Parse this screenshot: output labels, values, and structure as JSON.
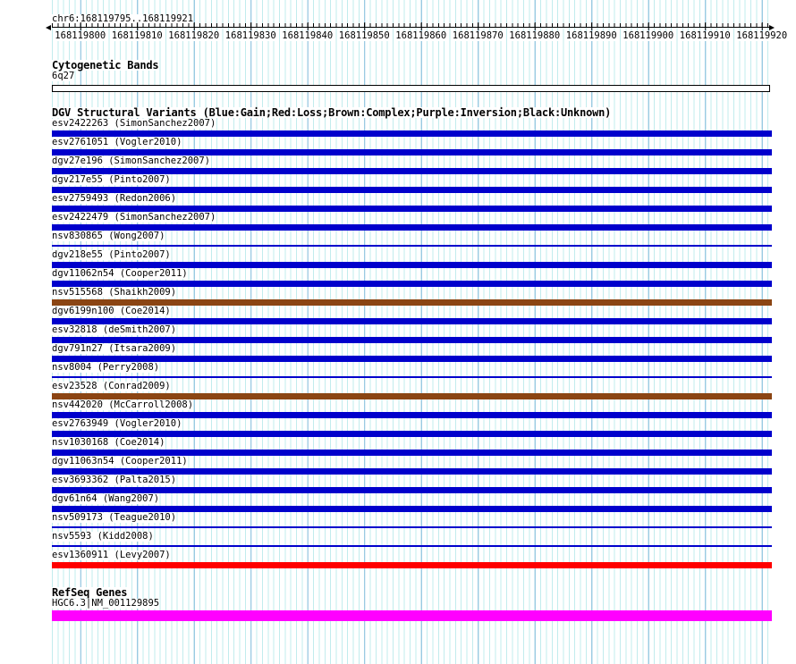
{
  "region": {
    "title": "chr6:168119795..168119921"
  },
  "ruler": {
    "tick_labels": [
      "168119800",
      "168119810",
      "168119820",
      "168119830",
      "168119840",
      "168119850",
      "168119860",
      "168119870",
      "168119880",
      "168119890",
      "168119900",
      "168119910",
      "168119920"
    ]
  },
  "sections": {
    "cytogenetic": {
      "header": "Cytogenetic Bands",
      "band_label": "6q27"
    },
    "dgv": {
      "header": "DGV Structural Variants (Blue:Gain;Red:Loss;Brown:Complex;Purple:Inversion;Black:Unknown)",
      "legend": {
        "gain": "#0000CC",
        "loss": "#FF0000",
        "complex": "#8B4513",
        "inversion": "#800080",
        "unknown": "#000000"
      },
      "variants": [
        {
          "label": "esv2422263 (SimonSanchez2007)",
          "color": "#0000CC",
          "shape": "box"
        },
        {
          "label": "esv2761051 (Vogler2010)",
          "color": "#0000CC",
          "shape": "box"
        },
        {
          "label": "dgv27e196 (SimonSanchez2007)",
          "color": "#0000CC",
          "shape": "box"
        },
        {
          "label": "dgv217e55 (Pinto2007)",
          "color": "#0000CC",
          "shape": "box"
        },
        {
          "label": "esv2759493 (Redon2006)",
          "color": "#0000CC",
          "shape": "box"
        },
        {
          "label": "esv2422479 (SimonSanchez2007)",
          "color": "#0000CC",
          "shape": "box"
        },
        {
          "label": "nsv830865 (Wong2007)",
          "color": "#0000CC",
          "shape": "line"
        },
        {
          "label": "dgv218e55 (Pinto2007)",
          "color": "#0000CC",
          "shape": "box"
        },
        {
          "label": "dgv11062n54 (Cooper2011)",
          "color": "#0000CC",
          "shape": "box"
        },
        {
          "label": "nsv515568 (Shaikh2009)",
          "color": "#8B4513",
          "shape": "box"
        },
        {
          "label": "dgv6199n100 (Coe2014)",
          "color": "#0000CC",
          "shape": "box"
        },
        {
          "label": "esv32818 (deSmith2007)",
          "color": "#0000CC",
          "shape": "box"
        },
        {
          "label": "dgv791n27 (Itsara2009)",
          "color": "#0000CC",
          "shape": "box"
        },
        {
          "label": "nsv8004 (Perry2008)",
          "color": "#0000CC",
          "shape": "line"
        },
        {
          "label": "esv23528 (Conrad2009)",
          "color": "#8B4513",
          "shape": "box"
        },
        {
          "label": "nsv442020 (McCarroll2008)",
          "color": "#0000CC",
          "shape": "box"
        },
        {
          "label": "esv2763949 (Vogler2010)",
          "color": "#0000CC",
          "shape": "box"
        },
        {
          "label": "nsv1030168 (Coe2014)",
          "color": "#0000CC",
          "shape": "box"
        },
        {
          "label": "dgv11063n54 (Cooper2011)",
          "color": "#0000CC",
          "shape": "box"
        },
        {
          "label": "esv3693362 (Palta2015)",
          "color": "#0000CC",
          "shape": "box"
        },
        {
          "label": "dgv61n64 (Wang2007)",
          "color": "#0000CC",
          "shape": "box"
        },
        {
          "label": "nsv509173 (Teague2010)",
          "color": "#0000CC",
          "shape": "line"
        },
        {
          "label": "nsv5593 (Kidd2008)",
          "color": "#0000CC",
          "shape": "line"
        },
        {
          "label": "esv1360911 (Levy2007)",
          "color": "#FF0000",
          "shape": "box"
        }
      ]
    },
    "refseq": {
      "header": "RefSeq Genes",
      "gene": {
        "label": "HGC6.3|NM_001129895",
        "color": "#FF00FF"
      }
    }
  },
  "colors": {
    "grid_minor": "#c2eced",
    "grid_major": "#8cbede",
    "background": "#ffffff"
  }
}
